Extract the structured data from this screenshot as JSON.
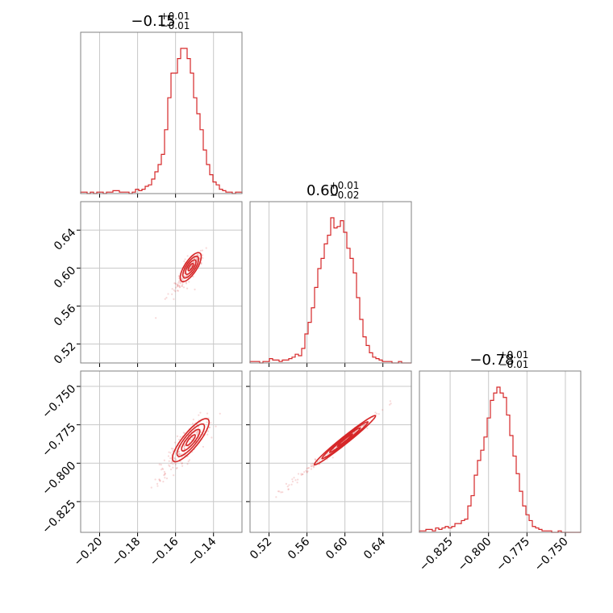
{
  "chart_data": {
    "type": "corner",
    "color": "#d62728",
    "parameters": [
      {
        "title_value": "−0.15",
        "title_plus": "+0.01",
        "title_minus": "−0.01",
        "range": [
          -0.21,
          -0.125
        ],
        "ticks": [
          -0.2,
          -0.18,
          -0.16,
          -0.14
        ],
        "tick_labels": [
          "−0.20",
          "−0.18",
          "−0.16",
          "−0.14"
        ],
        "hist_bins": [
          -0.21,
          -0.125,
          50
        ],
        "hist_counts": [
          1,
          1,
          0,
          1,
          0,
          1,
          1,
          0,
          1,
          1,
          2,
          2,
          1,
          1,
          1,
          0,
          1,
          3,
          2,
          3,
          5,
          6,
          10,
          15,
          20,
          27,
          44,
          66,
          83,
          83,
          93,
          100,
          100,
          93,
          83,
          66,
          55,
          44,
          30,
          20,
          13,
          8,
          6,
          3,
          2,
          1,
          1,
          0,
          1,
          1
        ]
      },
      {
        "title_value": "0.60",
        "title_plus": "+0.01",
        "title_minus": "−0.02",
        "range": [
          0.5,
          0.67
        ],
        "ticks": [
          0.52,
          0.56,
          0.6,
          0.64
        ],
        "tick_labels": [
          "0.52",
          "0.56",
          "0.60",
          "0.64"
        ],
        "hist_bins": [
          0.5,
          0.67,
          50
        ],
        "hist_counts": [
          1,
          1,
          1,
          0,
          1,
          1,
          3,
          2,
          2,
          1,
          2,
          2,
          3,
          4,
          6,
          5,
          10,
          20,
          28,
          38,
          52,
          65,
          72,
          82,
          88,
          100,
          93,
          94,
          98,
          90,
          79,
          72,
          62,
          45,
          30,
          18,
          12,
          7,
          4,
          3,
          2,
          1,
          1,
          1,
          0,
          0,
          1,
          0,
          0,
          0
        ]
      },
      {
        "title_value": "−0.78",
        "title_plus": "+0.01",
        "title_minus": "−0.01",
        "range": [
          -0.845,
          -0.74
        ],
        "ticks": [
          -0.825,
          -0.8,
          -0.775,
          -0.75
        ],
        "tick_labels": [
          "−0.825",
          "−0.800",
          "−0.775",
          "−0.750"
        ],
        "hist_bins": [
          -0.845,
          -0.74,
          50
        ],
        "hist_counts": [
          1,
          1,
          2,
          2,
          1,
          3,
          2,
          3,
          4,
          3,
          4,
          6,
          6,
          8,
          9,
          18,
          25,
          39,
          49,
          56,
          65,
          78,
          90,
          95,
          99,
          95,
          92,
          80,
          66,
          52,
          40,
          28,
          18,
          12,
          8,
          4,
          3,
          2,
          1,
          1,
          1,
          0,
          0,
          1,
          0,
          0,
          0,
          0,
          0,
          0
        ]
      }
    ],
    "samples_2d": [
      {
        "x_param": 0,
        "y_param": 1,
        "centroid": [
          -0.152,
          0.601
        ],
        "slope": 3.1,
        "along_sd": 0.0078,
        "perp_sd": 0.0017,
        "contour_levels": [
          0.5,
          1.0,
          1.5,
          2.0
        ]
      },
      {
        "x_param": 0,
        "y_param": 2,
        "centroid": [
          -0.152,
          -0.785
        ],
        "slope": 1.5,
        "along_sd": 0.0082,
        "perp_sd": 0.0022,
        "contour_levels": [
          0.5,
          1.0,
          1.5,
          2.0
        ]
      },
      {
        "x_param": 1,
        "y_param": 2,
        "centroid": [
          0.6,
          -0.785
        ],
        "slope": 0.495,
        "along_sd": 0.018,
        "perp_sd": 0.0009,
        "contour_levels": [
          0.5,
          1.0,
          1.5,
          2.0
        ]
      }
    ],
    "grid": true
  }
}
